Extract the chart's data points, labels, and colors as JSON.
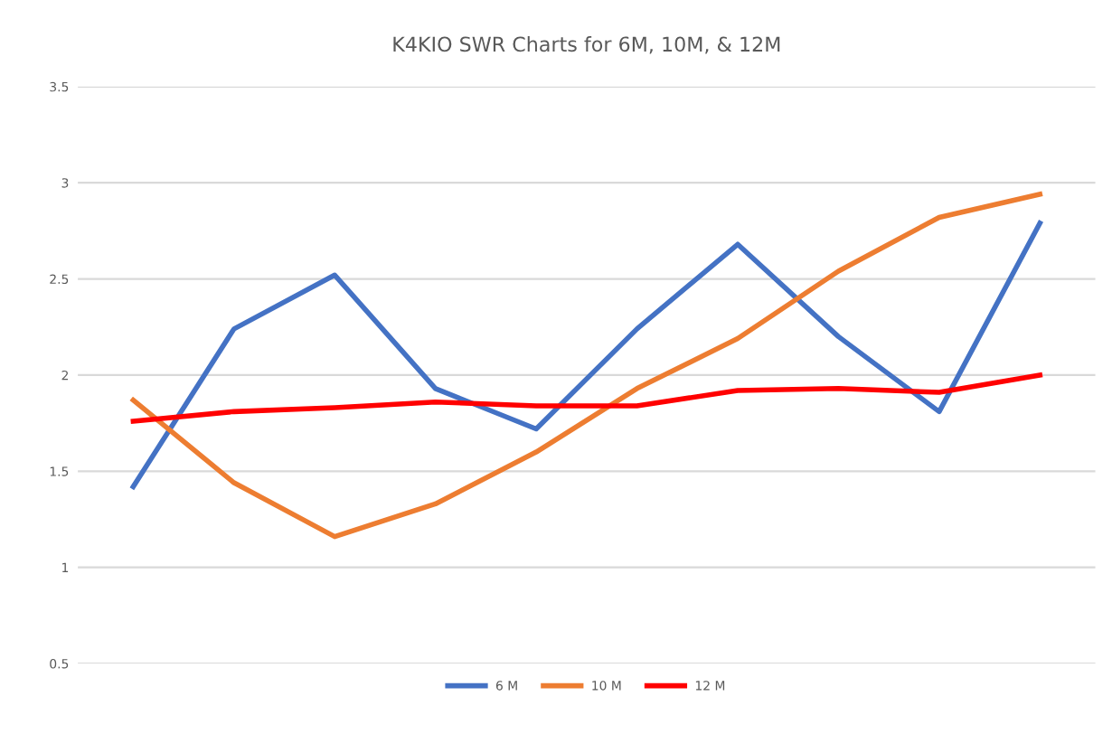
{
  "chart_data": {
    "type": "line",
    "title": "K4KIO SWR Charts for 6M, 10M, & 12M",
    "categories": [
      null,
      null,
      null,
      null,
      null,
      null,
      null,
      null,
      null,
      null
    ],
    "series": [
      {
        "name": "6 M",
        "color": "#4472c4",
        "values": [
          1.42,
          2.24,
          2.52,
          1.93,
          1.72,
          2.24,
          2.68,
          2.2,
          1.81,
          2.79
        ]
      },
      {
        "name": "10 M",
        "color": "#ed7d31",
        "values": [
          1.87,
          1.44,
          1.16,
          1.33,
          1.6,
          1.93,
          2.19,
          2.54,
          2.82,
          2.94
        ]
      },
      {
        "name": "12 M",
        "color": "#ff0000",
        "values": [
          1.76,
          1.81,
          1.83,
          1.86,
          1.84,
          1.84,
          1.92,
          1.93,
          1.91,
          2.0
        ]
      }
    ],
    "ylim": [
      0.5,
      3.5
    ],
    "yticks": [
      0.5,
      1,
      1.5,
      2,
      2.5,
      3,
      3.5
    ],
    "grid": "y",
    "legend": "bottom",
    "marker": "none",
    "line_style": "solid"
  }
}
